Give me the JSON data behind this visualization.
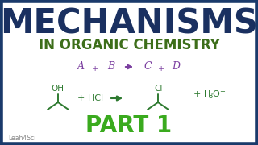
{
  "bg_color": "#ffffff",
  "border_color": "#1a3a6b",
  "border_width": 4,
  "title_text": "MECHANISMS",
  "title_color": "#1a3060",
  "title_fontsize": 30,
  "subtitle_text": "IN ORGANIC CHEMISTRY",
  "subtitle_color": "#3d6e1a",
  "subtitle_fontsize": 12,
  "part_text": "PART 1",
  "part_color": "#3aaa1e",
  "part_fontsize": 20,
  "abcd_color": "#7b3fa0",
  "reaction_color": "#2e7a30",
  "watermark": "Leah4Sci",
  "watermark_color": "#888888",
  "watermark_fontsize": 5.5
}
